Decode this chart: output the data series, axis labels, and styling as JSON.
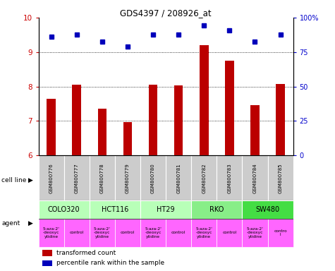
{
  "title": "GDS4397 / 208926_at",
  "samples": [
    "GSM800776",
    "GSM800777",
    "GSM800778",
    "GSM800779",
    "GSM800780",
    "GSM800781",
    "GSM800782",
    "GSM800783",
    "GSM800784",
    "GSM800785"
  ],
  "transformed_counts": [
    7.65,
    8.05,
    7.35,
    6.97,
    8.05,
    8.03,
    9.2,
    8.75,
    7.45,
    8.07
  ],
  "percentile_ranks": [
    9.45,
    9.5,
    9.3,
    9.15,
    9.5,
    9.5,
    9.78,
    9.63,
    9.3,
    9.5
  ],
  "ylim": [
    6,
    10
  ],
  "yticks_left": [
    6,
    7,
    8,
    9,
    10
  ],
  "yticks_right": [
    0,
    25,
    50,
    75,
    100
  ],
  "gridlines": [
    7,
    8,
    9
  ],
  "cell_line_groups": [
    {
      "name": "COLO320",
      "start": 0,
      "end": 2,
      "color": "#b8ffb8"
    },
    {
      "name": "HCT116",
      "start": 2,
      "end": 4,
      "color": "#b8ffb8"
    },
    {
      "name": "HT29",
      "start": 4,
      "end": 6,
      "color": "#b8ffb8"
    },
    {
      "name": "RKO",
      "start": 6,
      "end": 8,
      "color": "#88ee88"
    },
    {
      "name": "SW480",
      "start": 8,
      "end": 10,
      "color": "#44dd44"
    }
  ],
  "agents": [
    {
      "name": "5-aza-2'\n-deoxyc\nytidine",
      "drug": true
    },
    {
      "name": "control",
      "drug": false
    },
    {
      "name": "5-aza-2'\n-deoxyc\nytidine",
      "drug": true
    },
    {
      "name": "control",
      "drug": false
    },
    {
      "name": "5-aza-2'\n-deoxyc\nytidine",
      "drug": true
    },
    {
      "name": "control",
      "drug": false
    },
    {
      "name": "5-aza-2'\n-deoxyc\nytidine",
      "drug": true
    },
    {
      "name": "control",
      "drug": false
    },
    {
      "name": "5-aza-2'\n-deoxyc\nytidine",
      "drug": true
    },
    {
      "name": "contro\nl",
      "drug": false
    }
  ],
  "agent_color": "#ff66ff",
  "bar_color": "#bb0000",
  "dot_color": "#0000bb",
  "sample_bg_color": "#cccccc",
  "left_label_color": "#cc0000",
  "right_label_color": "#0000cc",
  "bar_width": 0.35
}
